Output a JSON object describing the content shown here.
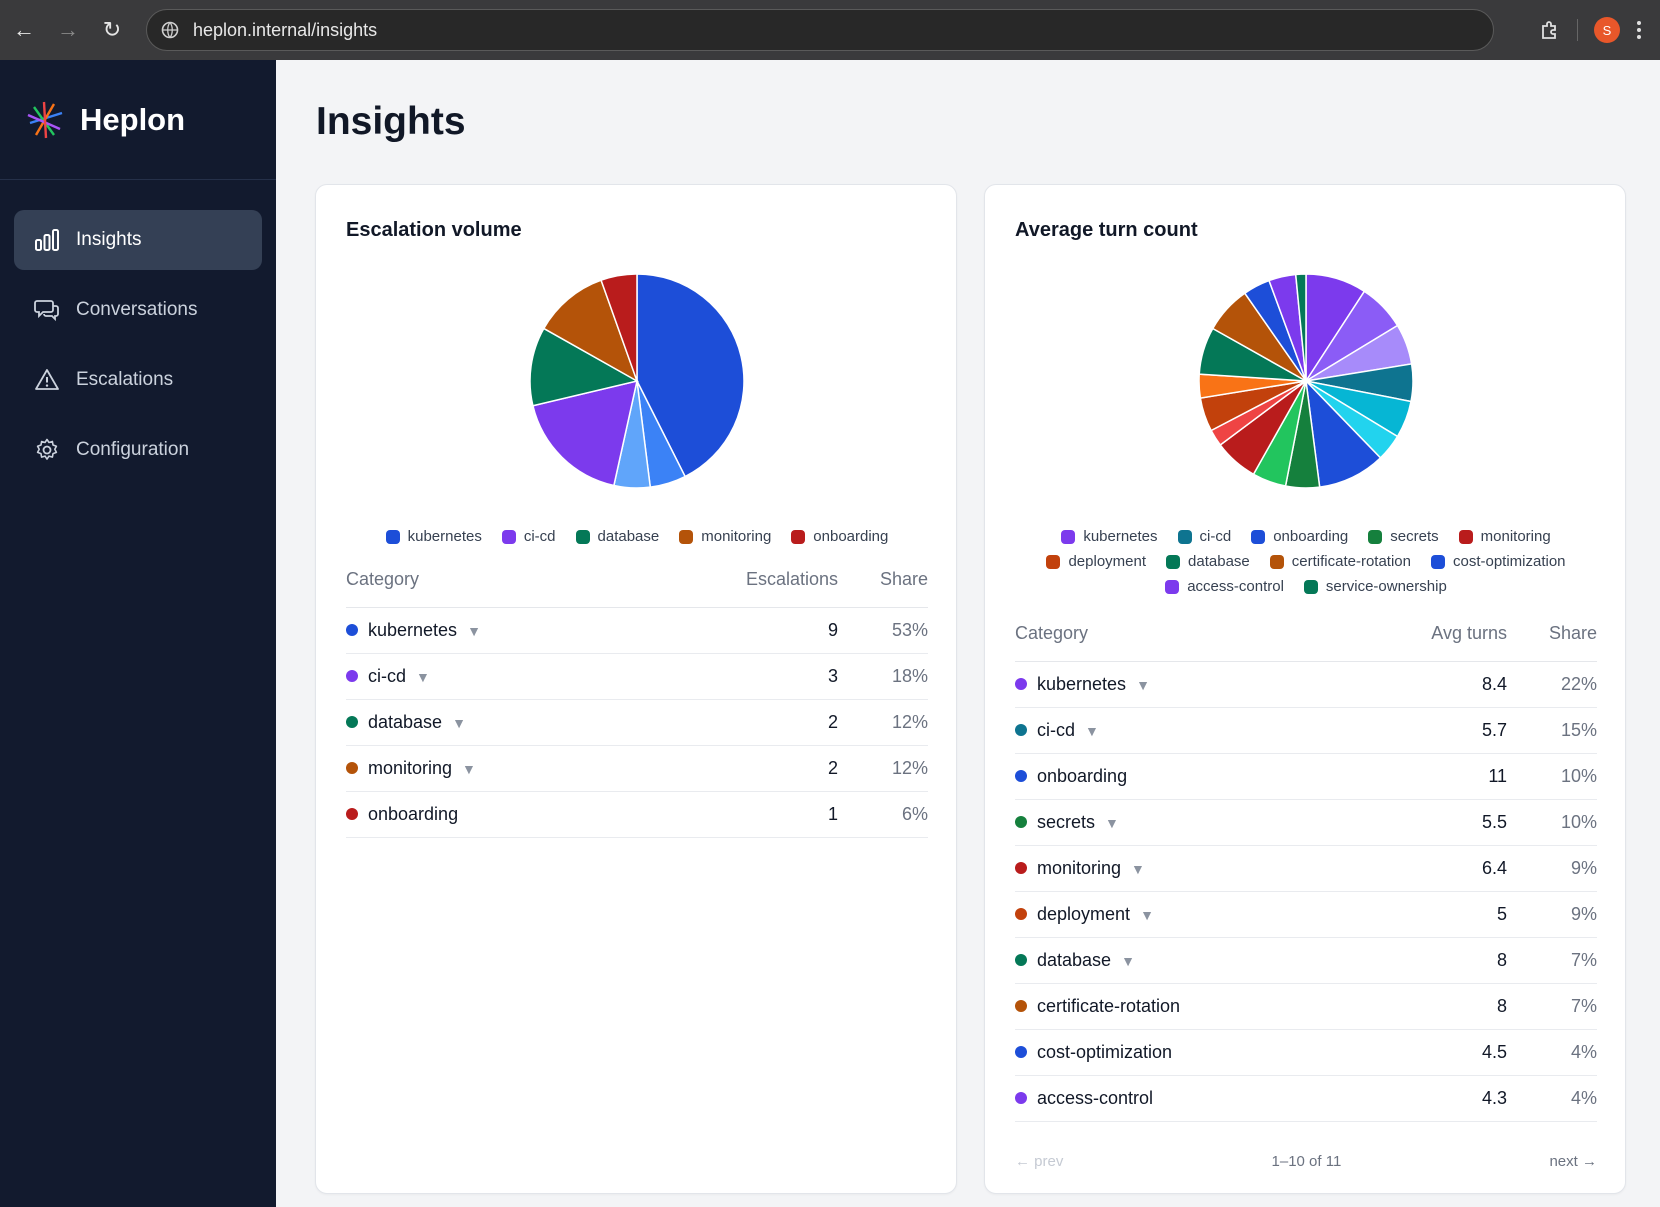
{
  "browser": {
    "url": "heplon.internal/insights",
    "avatar_letter": "S"
  },
  "sidebar": {
    "brand": "Heplon",
    "items": [
      {
        "label": "Insights",
        "icon": "bar-chart-icon",
        "active": true
      },
      {
        "label": "Conversations",
        "icon": "chat-bubbles-icon",
        "active": false
      },
      {
        "label": "Escalations",
        "icon": "warning-triangle-icon",
        "active": false
      },
      {
        "label": "Configuration",
        "icon": "gear-icon",
        "active": false
      }
    ]
  },
  "page": {
    "title": "Insights"
  },
  "escalation": {
    "title": "Escalation volume",
    "columns": {
      "category": "Category",
      "value": "Escalations",
      "share": "Share"
    },
    "rows": [
      {
        "category": "kubernetes",
        "value": "9",
        "share": "53%",
        "color": "#1d4ed8",
        "expandable": true
      },
      {
        "category": "ci-cd",
        "value": "3",
        "share": "18%",
        "color": "#7c3aed",
        "expandable": true
      },
      {
        "category": "database",
        "value": "2",
        "share": "12%",
        "color": "#047857",
        "expandable": true
      },
      {
        "category": "monitoring",
        "value": "2",
        "share": "12%",
        "color": "#b45309",
        "expandable": true
      },
      {
        "category": "onboarding",
        "value": "1",
        "share": "6%",
        "color": "#b91c1c",
        "expandable": false
      }
    ],
    "legend": [
      {
        "label": "kubernetes",
        "color": "#1d4ed8"
      },
      {
        "label": "ci-cd",
        "color": "#7c3aed"
      },
      {
        "label": "database",
        "color": "#047857"
      },
      {
        "label": "monitoring",
        "color": "#b45309"
      },
      {
        "label": "onboarding",
        "color": "#b91c1c"
      }
    ]
  },
  "turns": {
    "title": "Average turn count",
    "columns": {
      "category": "Category",
      "value": "Avg turns",
      "share": "Share"
    },
    "rows": [
      {
        "category": "kubernetes",
        "value": "8.4",
        "share": "22%",
        "color": "#7c3aed",
        "expandable": true
      },
      {
        "category": "ci-cd",
        "value": "5.7",
        "share": "15%",
        "color": "#0e7490",
        "expandable": true
      },
      {
        "category": "onboarding",
        "value": "11",
        "share": "10%",
        "color": "#1d4ed8",
        "expandable": false
      },
      {
        "category": "secrets",
        "value": "5.5",
        "share": "10%",
        "color": "#15803d",
        "expandable": true
      },
      {
        "category": "monitoring",
        "value": "6.4",
        "share": "9%",
        "color": "#b91c1c",
        "expandable": true
      },
      {
        "category": "deployment",
        "value": "5",
        "share": "9%",
        "color": "#c2410c",
        "expandable": true
      },
      {
        "category": "database",
        "value": "8",
        "share": "7%",
        "color": "#047857",
        "expandable": true
      },
      {
        "category": "certificate-rotation",
        "value": "8",
        "share": "7%",
        "color": "#b45309",
        "expandable": false
      },
      {
        "category": "cost-optimization",
        "value": "4.5",
        "share": "4%",
        "color": "#1d4ed8",
        "expandable": false
      },
      {
        "category": "access-control",
        "value": "4.3",
        "share": "4%",
        "color": "#7c3aed",
        "expandable": false
      }
    ],
    "legend": [
      {
        "label": "kubernetes",
        "color": "#7c3aed"
      },
      {
        "label": "ci-cd",
        "color": "#0e7490"
      },
      {
        "label": "onboarding",
        "color": "#1d4ed8"
      },
      {
        "label": "secrets",
        "color": "#15803d"
      },
      {
        "label": "monitoring",
        "color": "#b91c1c"
      },
      {
        "label": "deployment",
        "color": "#c2410c"
      },
      {
        "label": "database",
        "color": "#047857"
      },
      {
        "label": "certificate-rotation",
        "color": "#b45309"
      },
      {
        "label": "cost-optimization",
        "color": "#1d4ed8"
      },
      {
        "label": "access-control",
        "color": "#7c3aed"
      },
      {
        "label": "service-ownership",
        "color": "#047857"
      }
    ],
    "pager": {
      "prev": "← prev",
      "range": "1–10 of 11",
      "next": "next →"
    }
  },
  "chart_data": [
    {
      "type": "pie",
      "title": "Escalation volume",
      "categories": [
        "kubernetes",
        "ci-cd",
        "database",
        "monitoring",
        "onboarding"
      ],
      "slices": [
        {
          "label": "kubernetes",
          "value": 0.43,
          "color": "#1d4ed8"
        },
        {
          "label": "",
          "value": 0.055,
          "color": "#3b82f6"
        },
        {
          "label": "",
          "value": 0.055,
          "color": "#60a5fa"
        },
        {
          "label": "ci-cd",
          "value": 0.18,
          "color": "#7c3aed"
        },
        {
          "label": "database",
          "value": 0.12,
          "color": "#047857"
        },
        {
          "label": "monitoring",
          "value": 0.115,
          "color": "#b45309"
        },
        {
          "label": "onboarding",
          "value": 0.055,
          "color": "#b91c1c"
        }
      ]
    },
    {
      "type": "pie",
      "title": "Average turn count",
      "categories": [
        "kubernetes",
        "ci-cd",
        "onboarding",
        "secrets",
        "monitoring",
        "deployment",
        "database",
        "certificate-rotation",
        "cost-optimization",
        "access-control",
        "service-ownership"
      ],
      "slices": [
        {
          "label": "kubernetes",
          "value": 0.09,
          "color": "#7c3aed"
        },
        {
          "label": "",
          "value": 0.07,
          "color": "#8b5cf6"
        },
        {
          "label": "",
          "value": 0.06,
          "color": "#a78bfa"
        },
        {
          "label": "ci-cd",
          "value": 0.055,
          "color": "#0e7490"
        },
        {
          "label": "",
          "value": 0.055,
          "color": "#06b6d4"
        },
        {
          "label": "",
          "value": 0.04,
          "color": "#22d3ee"
        },
        {
          "label": "onboarding",
          "value": 0.1,
          "color": "#1d4ed8"
        },
        {
          "label": "secrets",
          "value": 0.05,
          "color": "#15803d"
        },
        {
          "label": "",
          "value": 0.05,
          "color": "#22c55e"
        },
        {
          "label": "monitoring",
          "value": 0.065,
          "color": "#b91c1c"
        },
        {
          "label": "",
          "value": 0.025,
          "color": "#ef4444"
        },
        {
          "label": "deployment",
          "value": 0.05,
          "color": "#c2410c"
        },
        {
          "label": "",
          "value": 0.035,
          "color": "#f97316"
        },
        {
          "label": "database",
          "value": 0.07,
          "color": "#047857"
        },
        {
          "label": "certificate-rotation",
          "value": 0.07,
          "color": "#b45309"
        },
        {
          "label": "cost-optimization",
          "value": 0.04,
          "color": "#1d4ed8"
        },
        {
          "label": "access-control",
          "value": 0.04,
          "color": "#7c3aed"
        },
        {
          "label": "service-ownership",
          "value": 0.015,
          "color": "#047857"
        }
      ]
    }
  ]
}
